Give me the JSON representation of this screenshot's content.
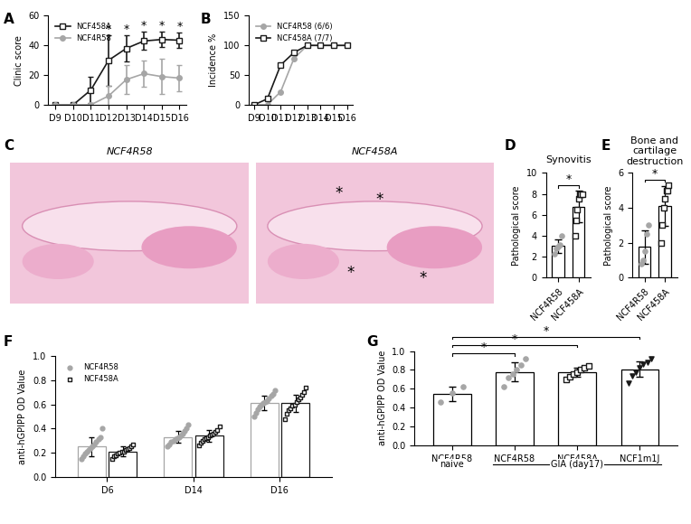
{
  "chart_data": [
    {
      "panel": "A",
      "type": "line",
      "ylabel": "Clinic score",
      "categories": [
        "D9",
        "D10",
        "D11",
        "D12",
        "D13",
        "D14",
        "D15",
        "D16"
      ],
      "ylim": [
        0,
        60
      ],
      "yticks": [
        0,
        20,
        40,
        60
      ],
      "legend": "upper left",
      "series": [
        {
          "name": "NCF458A",
          "color": "#1a1a1a",
          "marker": "square",
          "values": [
            0,
            0,
            10,
            30,
            38,
            43,
            44,
            43.5
          ],
          "errors": [
            0,
            0,
            9,
            17,
            9,
            6,
            5,
            5
          ]
        },
        {
          "name": "NCF4R58",
          "color": "#a6a6a6",
          "marker": "circle",
          "values": [
            0,
            0,
            0,
            6,
            17,
            21,
            19,
            18
          ],
          "errors": [
            0,
            0,
            0,
            7,
            10,
            9,
            12,
            9
          ]
        }
      ],
      "annotations": [
        {
          "category": "D12",
          "text": "*"
        },
        {
          "category": "D13",
          "text": "*"
        },
        {
          "category": "D14",
          "text": "*"
        },
        {
          "category": "D15",
          "text": "*"
        },
        {
          "category": "D16",
          "text": "*"
        }
      ]
    },
    {
      "panel": "B",
      "type": "line",
      "ylabel": "Incidence %",
      "categories": [
        "D9",
        "D10",
        "D11",
        "D12",
        "D13",
        "D14",
        "D15",
        "D16"
      ],
      "ylim": [
        0,
        150
      ],
      "yticks": [
        0,
        50,
        100,
        150
      ],
      "legend": "upper left",
      "series": [
        {
          "name": "NCF4R58 (6/6)",
          "color": "#a6a6a6",
          "marker": "circle",
          "values": [
            0,
            0,
            22,
            78,
            100,
            100,
            100,
            100
          ]
        },
        {
          "name": "NCF458A (7/7)",
          "color": "#1a1a1a",
          "marker": "square",
          "values": [
            0,
            10,
            67,
            88,
            100,
            100,
            100,
            100
          ]
        }
      ]
    },
    {
      "panel": "C",
      "type": "image",
      "images": [
        {
          "title": "NCF4R58",
          "annotations": []
        },
        {
          "title": "NCF458A",
          "annotations": [
            "*",
            "*",
            "*",
            "*"
          ]
        }
      ]
    },
    {
      "panel": "D",
      "type": "bar",
      "title": "Synovitis",
      "ylabel": "Pathological score",
      "categories": [
        "NCF4R58",
        "NCF458A"
      ],
      "ylim": [
        0,
        10
      ],
      "yticks": [
        0,
        2,
        4,
        6,
        8,
        10
      ],
      "values": [
        3.04,
        6.79
      ],
      "errors": [
        0.65,
        1.5
      ],
      "points": [
        [
          2.3,
          2.8,
          3,
          3.1,
          4
        ],
        [
          4,
          5.5,
          6.5,
          7.5,
          8,
          8,
          8
        ]
      ],
      "colors": [
        "#a6a6a6",
        "#1a1a1a"
      ],
      "marker": [
        "circle",
        "square"
      ],
      "annotations": [
        {
          "from": 0,
          "to": 1,
          "text": "*"
        }
      ]
    },
    {
      "panel": "E",
      "type": "bar",
      "title": "Bone and cartilage destruction",
      "ylabel": "Pathological score",
      "categories": [
        "NCF4R58",
        "NCF458A"
      ],
      "ylim": [
        0,
        6
      ],
      "yticks": [
        0,
        2,
        4,
        6
      ],
      "values": [
        1.76,
        4.11
      ],
      "errors": [
        0.95,
        1.15
      ],
      "points": [
        [
          0.8,
          1,
          1.5,
          2.5,
          3
        ],
        [
          2,
          3,
          4,
          4.5,
          5,
          5,
          5.3
        ]
      ],
      "colors": [
        "#a6a6a6",
        "#1a1a1a"
      ],
      "marker": [
        "circle",
        "square"
      ],
      "annotations": [
        {
          "from": 0,
          "to": 1,
          "text": "*"
        }
      ]
    },
    {
      "panel": "F",
      "type": "grouped_bar",
      "ylabel": "anti-hGPIPP OD Value",
      "categories": [
        "D6",
        "D14",
        "D16"
      ],
      "ylim": [
        0,
        1.0
      ],
      "yticks": [
        {
          "value": 0,
          "label": "0.0"
        },
        0.2,
        0.4,
        0.6,
        0.8,
        {
          "value": 1.0,
          "label": "1.0"
        }
      ],
      "legend": "upper left",
      "series": [
        {
          "name": "NCF4R58",
          "color": "#a6a6a6",
          "marker": "circle",
          "values": [
            0.25,
            0.33,
            0.61
          ],
          "errors": [
            0.08,
            0.05,
            0.06
          ],
          "points": [
            [
              0.15,
              0.17,
              0.19,
              0.21,
              0.22,
              0.24,
              0.25,
              0.27,
              0.29,
              0.31,
              0.33,
              0.4
            ],
            [
              0.25,
              0.27,
              0.29,
              0.3,
              0.31,
              0.32,
              0.33,
              0.34,
              0.36,
              0.38,
              0.4,
              0.43
            ],
            [
              0.5,
              0.53,
              0.56,
              0.58,
              0.6,
              0.61,
              0.62,
              0.63,
              0.65,
              0.67,
              0.69,
              0.72
            ]
          ]
        },
        {
          "name": "NCF458A",
          "color": "#1a1a1a",
          "marker": "square",
          "values": [
            0.21,
            0.34,
            0.61
          ],
          "errors": [
            0.04,
            0.05,
            0.07
          ],
          "points": [
            [
              0.15,
              0.17,
              0.18,
              0.19,
              0.2,
              0.21,
              0.21,
              0.22,
              0.23,
              0.24,
              0.25,
              0.27
            ],
            [
              0.26,
              0.28,
              0.3,
              0.31,
              0.32,
              0.33,
              0.34,
              0.35,
              0.36,
              0.37,
              0.39,
              0.42
            ],
            [
              0.48,
              0.52,
              0.55,
              0.57,
              0.59,
              0.6,
              0.62,
              0.64,
              0.66,
              0.68,
              0.7,
              0.74
            ]
          ]
        }
      ]
    },
    {
      "panel": "G",
      "type": "bar",
      "ylabel": "anti-hGPIPP OD Value",
      "categories": [
        "NCF4R58",
        "NCF4R58",
        "NCF458A",
        "NCF1m1J"
      ],
      "ylim": [
        0,
        1.0
      ],
      "yticks": [
        {
          "value": 0,
          "label": "0.0"
        },
        0.2,
        0.4,
        0.6,
        0.8,
        {
          "value": 1.0,
          "label": "1.0"
        }
      ],
      "values": [
        0.547,
        0.78,
        0.776,
        0.809
      ],
      "errors": [
        0.08,
        0.1,
        0.05,
        0.08
      ],
      "points": [
        [
          0.46,
          0.56,
          0.62
        ],
        [
          0.62,
          0.72,
          0.76,
          0.8,
          0.85,
          0.92
        ],
        [
          0.7,
          0.73,
          0.76,
          0.78,
          0.8,
          0.82,
          0.84
        ],
        [
          0.66,
          0.74,
          0.78,
          0.82,
          0.86,
          0.88,
          0.92
        ]
      ],
      "colors": [
        "#a6a6a6",
        "#a6a6a6",
        "#1a1a1a",
        "#1a1a1a"
      ],
      "marker": [
        "circle",
        "circle",
        "square",
        "triangle"
      ],
      "groups": [
        {
          "text": "naive",
          "categories": [
            0
          ]
        },
        {
          "text": "GIA (day17)",
          "categories": [
            1,
            2,
            3
          ]
        }
      ],
      "annotations": [
        {
          "from": 0,
          "to": 1,
          "text": "*"
        },
        {
          "from": 0,
          "to": 2,
          "text": "*"
        },
        {
          "from": 0,
          "to": 3,
          "text": "*"
        }
      ]
    }
  ]
}
